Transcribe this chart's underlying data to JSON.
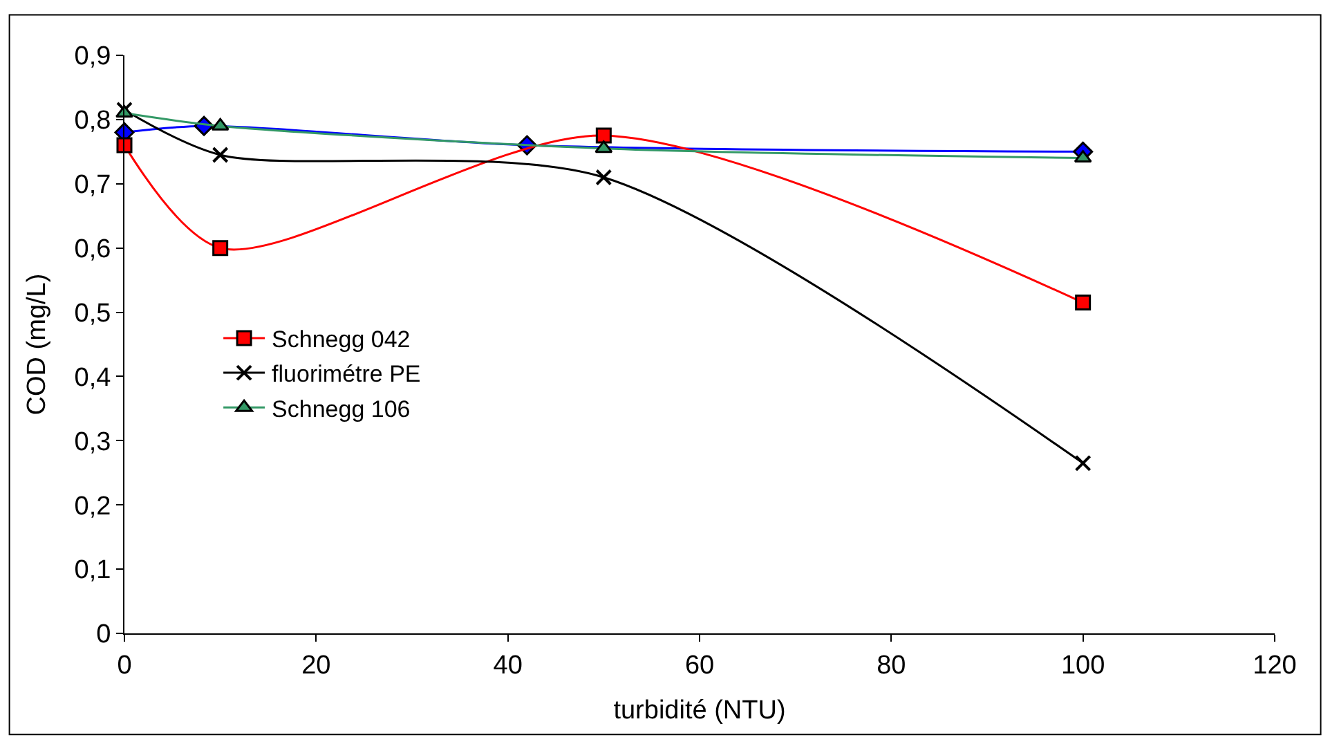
{
  "chart_data": {
    "type": "line",
    "xlabel": "turbidité (NTU)",
    "ylabel": "COD (mg/L)",
    "xlim": [
      0,
      120
    ],
    "xticks": [
      0,
      20,
      40,
      60,
      80,
      100,
      120
    ],
    "ylim": [
      0,
      0.9
    ],
    "yticks": [
      {
        "value": 0,
        "label": "0"
      },
      {
        "value": 0.1,
        "label": "0,1"
      },
      {
        "value": 0.2,
        "label": "0,2"
      },
      {
        "value": 0.3,
        "label": "0,3"
      },
      {
        "value": 0.4,
        "label": "0,4"
      },
      {
        "value": 0.5,
        "label": "0,5"
      },
      {
        "value": 0.6,
        "label": "0,6"
      },
      {
        "value": 0.7,
        "label": "0,7"
      },
      {
        "value": 0.8,
        "label": "0,8"
      },
      {
        "value": 0.9,
        "label": "0,9"
      }
    ],
    "legend": "left",
    "line_style": "solid",
    "series": [
      {
        "color": "#0000ff",
        "marker": "diamond",
        "x": [
          0,
          8.3,
          42,
          100
        ],
        "values": [
          0.78,
          0.79,
          0.76,
          0.75
        ]
      },
      {
        "name": "Schnegg 042",
        "color": "#ff0000",
        "marker": "square",
        "x": [
          0,
          10,
          50,
          100
        ],
        "values": [
          0.76,
          0.6,
          0.775,
          0.515
        ]
      },
      {
        "name": "fluorimétre PE",
        "color": "#000000",
        "marker": "cross",
        "x": [
          0,
          10,
          50,
          100
        ],
        "values": [
          0.815,
          0.745,
          0.71,
          0.265
        ]
      },
      {
        "name": "Schnegg 106",
        "color": "#339966",
        "marker": "triangle",
        "x": [
          0,
          10,
          50,
          100
        ],
        "values": [
          0.81,
          0.79,
          0.755,
          0.74
        ]
      }
    ]
  }
}
